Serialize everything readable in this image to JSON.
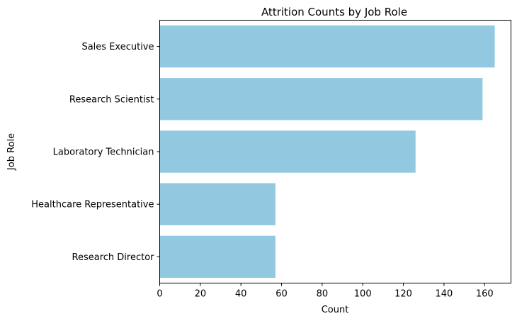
{
  "chart_data": {
    "type": "bar",
    "orientation": "horizontal",
    "title": "Attrition Counts by Job Role",
    "xlabel": "Count",
    "ylabel": "Job Role",
    "categories": [
      "Sales Executive",
      "Research Scientist",
      "Laboratory Technician",
      "Healthcare Representative",
      "Research Director"
    ],
    "values": [
      165,
      159,
      126,
      57,
      57
    ],
    "xlim": [
      0,
      173
    ],
    "xticks": [
      0,
      20,
      40,
      60,
      80,
      100,
      120,
      140,
      160
    ],
    "bar_color": "#92c9e0",
    "grid": false
  }
}
